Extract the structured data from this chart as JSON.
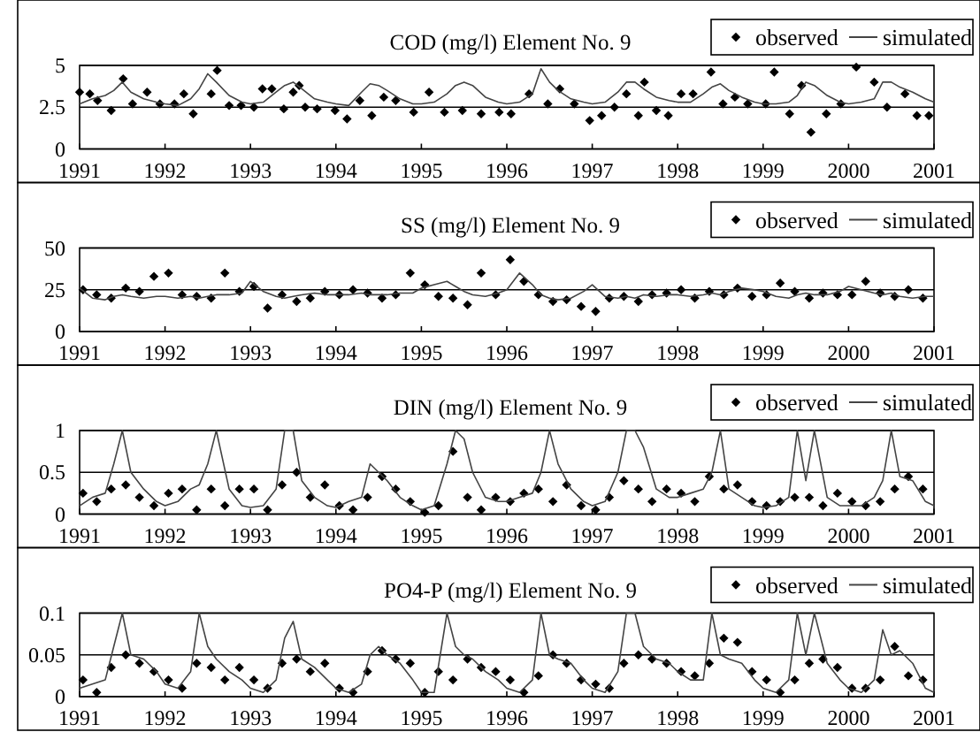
{
  "chart_data": [
    {
      "type": "line",
      "title": "COD (mg/l)  Element No. 9",
      "xlim": [
        1991,
        2001
      ],
      "xticks": [
        1991,
        1992,
        1993,
        1994,
        1995,
        1996,
        1997,
        1998,
        1999,
        2000,
        2001
      ],
      "ylim": [
        0,
        5
      ],
      "yticks": [
        0,
        2.5,
        5
      ],
      "grid": "y",
      "legend": "top right",
      "series": [
        {
          "name": "observed",
          "type": "scatter",
          "marker": "diamond",
          "color": "#000000",
          "x": [
            1991.0,
            1991.12,
            1991.21,
            1991.37,
            1991.51,
            1991.62,
            1991.79,
            1991.94,
            1992.11,
            1992.22,
            1992.33,
            1992.54,
            1992.61,
            1992.75,
            1992.89,
            1993.04,
            1993.14,
            1993.25,
            1993.39,
            1993.5,
            1993.57,
            1993.64,
            1993.78,
            1993.99,
            1994.13,
            1994.28,
            1994.42,
            1994.56,
            1994.7,
            1994.91,
            1995.09,
            1995.27,
            1995.48,
            1995.7,
            1995.91,
            1996.05,
            1996.26,
            1996.48,
            1996.62,
            1996.79,
            1996.97,
            1997.11,
            1997.26,
            1997.4,
            1997.54,
            1997.61,
            1997.75,
            1997.89,
            1998.04,
            1998.18,
            1998.39,
            1998.53,
            1998.67,
            1998.82,
            1999.03,
            1999.13,
            1999.31,
            1999.45,
            1999.56,
            1999.74,
            1999.91,
            2000.09,
            2000.3,
            2000.45,
            2000.66,
            2000.8,
            2000.94
          ],
          "values": [
            3.4,
            3.3,
            2.9,
            2.3,
            4.2,
            2.7,
            3.4,
            2.7,
            2.7,
            3.3,
            2.1,
            3.3,
            4.7,
            2.6,
            2.6,
            2.5,
            3.6,
            3.6,
            2.4,
            3.4,
            3.8,
            2.5,
            2.4,
            2.3,
            1.8,
            2.9,
            2.0,
            3.1,
            2.9,
            2.2,
            3.4,
            2.2,
            2.3,
            2.1,
            2.2,
            2.1,
            3.3,
            2.7,
            3.6,
            2.7,
            1.7,
            2.0,
            2.5,
            3.3,
            2.0,
            4.0,
            2.3,
            2.0,
            3.3,
            3.3,
            4.6,
            2.7,
            3.1,
            2.7,
            2.7,
            4.6,
            2.1,
            3.8,
            1.0,
            2.1,
            2.7,
            4.9,
            4.0,
            2.5,
            3.3,
            2.0,
            2.0
          ]
        },
        {
          "name": "simulated",
          "type": "line",
          "marker": "none",
          "color": "#444444",
          "x": [
            1991,
            1991.15,
            1991.3,
            1991.4,
            1991.5,
            1991.6,
            1991.75,
            1991.9,
            1992,
            1992.15,
            1992.3,
            1992.4,
            1992.5,
            1992.6,
            1992.75,
            1992.9,
            1993,
            1993.15,
            1993.3,
            1993.4,
            1993.5,
            1993.6,
            1993.75,
            1993.9,
            1994,
            1994.15,
            1994.3,
            1994.4,
            1994.5,
            1994.6,
            1994.75,
            1994.9,
            1995,
            1995.15,
            1995.3,
            1995.4,
            1995.5,
            1995.6,
            1995.75,
            1995.9,
            1996,
            1996.15,
            1996.3,
            1996.4,
            1996.5,
            1996.6,
            1996.75,
            1996.9,
            1997,
            1997.15,
            1997.3,
            1997.4,
            1997.5,
            1997.6,
            1997.75,
            1997.9,
            1998,
            1998.15,
            1998.3,
            1998.4,
            1998.5,
            1998.6,
            1998.75,
            1998.9,
            1999,
            1999.15,
            1999.3,
            1999.4,
            1999.5,
            1999.6,
            1999.75,
            1999.9,
            2000,
            2000.15,
            2000.3,
            2000.4,
            2000.5,
            2000.6,
            2000.75,
            2000.9,
            2001
          ],
          "values": [
            2.7,
            3.0,
            3.2,
            3.5,
            4.0,
            3.4,
            3.0,
            2.8,
            2.7,
            2.6,
            3.0,
            3.6,
            4.5,
            4.0,
            3.2,
            2.8,
            2.7,
            2.8,
            3.4,
            3.8,
            4.0,
            3.6,
            3.0,
            2.8,
            2.7,
            2.6,
            3.4,
            3.9,
            3.8,
            3.5,
            3.0,
            2.7,
            2.7,
            2.8,
            3.3,
            3.8,
            4.0,
            3.8,
            3.1,
            2.8,
            2.7,
            2.8,
            3.3,
            4.8,
            4.0,
            3.5,
            3.0,
            2.8,
            2.7,
            2.8,
            3.4,
            4.0,
            4.0,
            3.6,
            3.1,
            2.9,
            2.8,
            2.8,
            3.3,
            3.7,
            3.9,
            3.5,
            3.1,
            2.8,
            2.7,
            2.7,
            2.8,
            3.2,
            4.0,
            3.8,
            3.2,
            2.8,
            2.7,
            2.8,
            3.0,
            4.0,
            4.0,
            3.7,
            3.4,
            3.0,
            2.8
          ]
        }
      ]
    },
    {
      "type": "line",
      "title": "SS (mg/l)  Element No. 9",
      "xlim": [
        1991,
        2001
      ],
      "xticks": [
        1991,
        1992,
        1993,
        1994,
        1995,
        1996,
        1997,
        1998,
        1999,
        2000,
        2001
      ],
      "ylim": [
        0,
        50
      ],
      "yticks": [
        0,
        25,
        50
      ],
      "grid": "y",
      "legend": "top right",
      "series": [
        {
          "name": "observed",
          "type": "scatter",
          "marker": "diamond",
          "color": "#000000",
          "x": [
            1991.04,
            1991.2,
            1991.37,
            1991.54,
            1991.7,
            1991.87,
            1992.04,
            1992.2,
            1992.37,
            1992.54,
            1992.7,
            1992.87,
            1993.04,
            1993.2,
            1993.37,
            1993.54,
            1993.7,
            1993.87,
            1994.04,
            1994.2,
            1994.37,
            1994.54,
            1994.7,
            1994.87,
            1995.04,
            1995.2,
            1995.37,
            1995.54,
            1995.7,
            1995.87,
            1996.04,
            1996.2,
            1996.37,
            1996.54,
            1996.7,
            1996.87,
            1997.04,
            1997.2,
            1997.37,
            1997.54,
            1997.7,
            1997.87,
            1998.04,
            1998.2,
            1998.37,
            1998.54,
            1998.7,
            1998.87,
            1999.04,
            1999.2,
            1999.37,
            1999.54,
            1999.7,
            1999.87,
            2000.04,
            2000.2,
            2000.37,
            2000.54,
            2000.7,
            2000.87
          ],
          "values": [
            25,
            22,
            20,
            26,
            24,
            33,
            35,
            22,
            21,
            20,
            35,
            24,
            27,
            14,
            22,
            18,
            20,
            24,
            22,
            25,
            23,
            20,
            22,
            35,
            28,
            21,
            20,
            16,
            35,
            22,
            43,
            30,
            22,
            18,
            19,
            15,
            12,
            20,
            21,
            18,
            22,
            23,
            25,
            20,
            24,
            22,
            26,
            21,
            22,
            29,
            24,
            20,
            23,
            22,
            22,
            30,
            23,
            21,
            25,
            20
          ]
        },
        {
          "name": "simulated",
          "type": "line",
          "marker": "none",
          "color": "#444444",
          "x": [
            1991,
            1991.15,
            1991.3,
            1991.4,
            1991.5,
            1991.6,
            1991.75,
            1991.9,
            1992,
            1992.15,
            1992.3,
            1992.4,
            1992.5,
            1992.6,
            1992.75,
            1992.9,
            1993,
            1993.15,
            1993.3,
            1993.4,
            1993.5,
            1993.6,
            1993.75,
            1993.9,
            1994,
            1994.15,
            1994.3,
            1994.4,
            1994.5,
            1994.6,
            1994.75,
            1994.9,
            1995,
            1995.15,
            1995.3,
            1995.4,
            1995.5,
            1995.6,
            1995.75,
            1995.9,
            1996,
            1996.15,
            1996.3,
            1996.4,
            1996.5,
            1996.6,
            1996.75,
            1996.9,
            1997,
            1997.15,
            1997.3,
            1997.4,
            1997.5,
            1997.6,
            1997.75,
            1997.9,
            1998,
            1998.15,
            1998.3,
            1998.4,
            1998.5,
            1998.6,
            1998.75,
            1998.9,
            1999,
            1999.15,
            1999.3,
            1999.4,
            1999.5,
            1999.6,
            1999.75,
            1999.9,
            2000,
            2000.15,
            2000.3,
            2000.4,
            2000.5,
            2000.6,
            2000.75,
            2000.9,
            2001
          ],
          "values": [
            26,
            20,
            19,
            21,
            22,
            21,
            20,
            21,
            21,
            20,
            21,
            20,
            21,
            22,
            22,
            23,
            30,
            24,
            21,
            20,
            21,
            22,
            23,
            22,
            22,
            22,
            23,
            22,
            22,
            22,
            23,
            23,
            26,
            28,
            30,
            27,
            24,
            22,
            21,
            23,
            25,
            35,
            28,
            22,
            20,
            19,
            20,
            24,
            28,
            21,
            20,
            21,
            20,
            22,
            21,
            22,
            22,
            21,
            22,
            23,
            22,
            24,
            26,
            25,
            24,
            21,
            20,
            22,
            23,
            22,
            22,
            24,
            27,
            25,
            23,
            22,
            23,
            21,
            20,
            21,
            21
          ]
        }
      ]
    },
    {
      "type": "line",
      "title": "DIN (mg/l)  Element No. 9",
      "xlim": [
        1991,
        2001
      ],
      "xticks": [
        1991,
        1992,
        1993,
        1994,
        1995,
        1996,
        1997,
        1998,
        1999,
        2000,
        2001
      ],
      "ylim": [
        0,
        1
      ],
      "yticks": [
        0,
        0.5,
        1
      ],
      "grid": "y",
      "legend": "top right",
      "series": [
        {
          "name": "observed",
          "type": "scatter",
          "marker": "diamond",
          "color": "#000000",
          "x": [
            1991.04,
            1991.2,
            1991.37,
            1991.54,
            1991.7,
            1991.87,
            1992.04,
            1992.2,
            1992.37,
            1992.54,
            1992.7,
            1992.87,
            1993.04,
            1993.2,
            1993.37,
            1993.54,
            1993.7,
            1993.87,
            1994.04,
            1994.2,
            1994.37,
            1994.54,
            1994.7,
            1994.87,
            1995.04,
            1995.2,
            1995.37,
            1995.54,
            1995.7,
            1995.87,
            1996.04,
            1996.2,
            1996.37,
            1996.54,
            1996.7,
            1996.87,
            1997.04,
            1997.2,
            1997.37,
            1997.54,
            1997.7,
            1997.87,
            1998.04,
            1998.2,
            1998.37,
            1998.54,
            1998.7,
            1998.87,
            1999.04,
            1999.2,
            1999.37,
            1999.54,
            1999.7,
            1999.87,
            2000.04,
            2000.2,
            2000.37,
            2000.54,
            2000.7,
            2000.87
          ],
          "values": [
            0.25,
            0.15,
            0.3,
            0.35,
            0.2,
            0.1,
            0.25,
            0.3,
            0.05,
            0.3,
            0.1,
            0.3,
            0.3,
            0.05,
            0.35,
            0.5,
            0.2,
            0.35,
            0.1,
            0.05,
            0.2,
            0.45,
            0.3,
            0.15,
            0.02,
            0.1,
            0.75,
            0.2,
            0.05,
            0.2,
            0.15,
            0.25,
            0.3,
            0.15,
            0.35,
            0.1,
            0.05,
            0.2,
            0.4,
            0.3,
            0.15,
            0.3,
            0.25,
            0.15,
            0.45,
            0.3,
            0.35,
            0.15,
            0.1,
            0.15,
            0.2,
            0.2,
            0.1,
            0.25,
            0.15,
            0.1,
            0.15,
            0.3,
            0.45,
            0.3
          ]
        },
        {
          "name": "simulated",
          "type": "line",
          "marker": "none",
          "color": "#444444",
          "x": [
            1991,
            1991.15,
            1991.3,
            1991.4,
            1991.5,
            1991.6,
            1991.75,
            1991.9,
            1992,
            1992.15,
            1992.3,
            1992.4,
            1992.5,
            1992.6,
            1992.75,
            1992.9,
            1993,
            1993.15,
            1993.3,
            1993.4,
            1993.5,
            1993.6,
            1993.75,
            1993.9,
            1994,
            1994.15,
            1994.3,
            1994.4,
            1994.5,
            1994.6,
            1994.75,
            1994.9,
            1995,
            1995.15,
            1995.3,
            1995.4,
            1995.5,
            1995.6,
            1995.75,
            1995.9,
            1996,
            1996.15,
            1996.3,
            1996.4,
            1996.5,
            1996.6,
            1996.75,
            1996.9,
            1997,
            1997.15,
            1997.3,
            1997.4,
            1997.5,
            1997.6,
            1997.75,
            1997.9,
            1998,
            1998.15,
            1998.3,
            1998.4,
            1998.5,
            1998.6,
            1998.75,
            1998.9,
            1999,
            1999.15,
            1999.3,
            1999.4,
            1999.5,
            1999.6,
            1999.75,
            1999.9,
            2000,
            2000.15,
            2000.3,
            2000.4,
            2000.5,
            2000.6,
            2000.75,
            2000.9,
            2001
          ],
          "values": [
            0.1,
            0.2,
            0.25,
            0.6,
            1.0,
            0.5,
            0.3,
            0.15,
            0.1,
            0.15,
            0.3,
            0.35,
            0.6,
            1.0,
            0.3,
            0.1,
            0.08,
            0.1,
            0.3,
            1.0,
            1.0,
            0.4,
            0.2,
            0.1,
            0.08,
            0.15,
            0.2,
            0.6,
            0.5,
            0.4,
            0.2,
            0.1,
            0.05,
            0.1,
            0.6,
            1.0,
            0.9,
            0.5,
            0.2,
            0.15,
            0.15,
            0.2,
            0.25,
            0.5,
            1.0,
            0.6,
            0.3,
            0.15,
            0.1,
            0.15,
            0.5,
            1.0,
            1.0,
            0.8,
            0.3,
            0.2,
            0.2,
            0.25,
            0.3,
            0.5,
            1.0,
            0.3,
            0.2,
            0.1,
            0.08,
            0.1,
            0.2,
            1.0,
            0.4,
            1.0,
            0.2,
            0.1,
            0.1,
            0.1,
            0.2,
            0.4,
            1.0,
            0.45,
            0.4,
            0.15,
            0.1
          ]
        }
      ]
    },
    {
      "type": "line",
      "title": "PO4-P (mg/l)  Element No. 9",
      "xlim": [
        1991,
        2001
      ],
      "xticks": [
        1991,
        1992,
        1993,
        1994,
        1995,
        1996,
        1997,
        1998,
        1999,
        2000,
        2001
      ],
      "ylim": [
        0,
        0.1
      ],
      "yticks": [
        0,
        0.05,
        0.1
      ],
      "grid": "y",
      "legend": "top right",
      "series": [
        {
          "name": "observed",
          "type": "scatter",
          "marker": "diamond",
          "color": "#000000",
          "x": [
            1991.04,
            1991.2,
            1991.37,
            1991.54,
            1991.7,
            1991.87,
            1992.04,
            1992.2,
            1992.37,
            1992.54,
            1992.7,
            1992.87,
            1993.04,
            1993.2,
            1993.37,
            1993.54,
            1993.7,
            1993.87,
            1994.04,
            1994.2,
            1994.37,
            1994.54,
            1994.7,
            1994.87,
            1995.04,
            1995.2,
            1995.37,
            1995.54,
            1995.7,
            1995.87,
            1996.04,
            1996.2,
            1996.37,
            1996.54,
            1996.7,
            1996.87,
            1997.04,
            1997.2,
            1997.37,
            1997.54,
            1997.7,
            1997.87,
            1998.04,
            1998.2,
            1998.37,
            1998.54,
            1998.7,
            1998.87,
            1999.04,
            1999.2,
            1999.37,
            1999.54,
            1999.7,
            1999.87,
            2000.04,
            2000.2,
            2000.37,
            2000.54,
            2000.7,
            2000.87
          ],
          "values": [
            0.02,
            0.005,
            0.035,
            0.05,
            0.04,
            0.03,
            0.02,
            0.01,
            0.04,
            0.035,
            0.02,
            0.035,
            0.02,
            0.01,
            0.04,
            0.045,
            0.03,
            0.04,
            0.01,
            0.005,
            0.03,
            0.055,
            0.045,
            0.04,
            0.005,
            0.03,
            0.02,
            0.045,
            0.035,
            0.03,
            0.02,
            0.005,
            0.025,
            0.05,
            0.04,
            0.02,
            0.015,
            0.01,
            0.04,
            0.05,
            0.045,
            0.04,
            0.03,
            0.025,
            0.04,
            0.07,
            0.065,
            0.03,
            0.02,
            0.005,
            0.02,
            0.04,
            0.045,
            0.035,
            0.01,
            0.01,
            0.02,
            0.06,
            0.025,
            0.02
          ]
        },
        {
          "name": "simulated",
          "type": "line",
          "marker": "none",
          "color": "#444444",
          "x": [
            1991,
            1991.15,
            1991.3,
            1991.4,
            1991.5,
            1991.6,
            1991.75,
            1991.9,
            1992,
            1992.15,
            1992.3,
            1992.4,
            1992.5,
            1992.6,
            1992.75,
            1992.9,
            1993,
            1993.15,
            1993.3,
            1993.4,
            1993.5,
            1993.6,
            1993.75,
            1993.9,
            1994,
            1994.15,
            1994.3,
            1994.4,
            1994.5,
            1994.6,
            1994.75,
            1994.9,
            1995,
            1995.15,
            1995.3,
            1995.4,
            1995.5,
            1995.6,
            1995.75,
            1995.9,
            1996,
            1996.15,
            1996.3,
            1996.4,
            1996.5,
            1996.6,
            1996.75,
            1996.9,
            1997,
            1997.15,
            1997.3,
            1997.4,
            1997.5,
            1997.6,
            1997.75,
            1997.9,
            1998,
            1998.15,
            1998.3,
            1998.4,
            1998.5,
            1998.6,
            1998.75,
            1998.9,
            1999,
            1999.15,
            1999.3,
            1999.4,
            1999.5,
            1999.6,
            1999.75,
            1999.9,
            2000,
            2000.15,
            2000.3,
            2000.4,
            2000.5,
            2000.6,
            2000.75,
            2000.9,
            2001
          ],
          "values": [
            0.01,
            0.015,
            0.02,
            0.06,
            0.1,
            0.05,
            0.045,
            0.03,
            0.015,
            0.01,
            0.03,
            0.1,
            0.06,
            0.045,
            0.03,
            0.02,
            0.01,
            0.005,
            0.02,
            0.07,
            0.09,
            0.045,
            0.035,
            0.02,
            0.01,
            0.005,
            0.015,
            0.05,
            0.06,
            0.05,
            0.04,
            0.02,
            0.005,
            0.005,
            0.1,
            0.06,
            0.05,
            0.045,
            0.03,
            0.02,
            0.01,
            0.005,
            0.02,
            0.1,
            0.05,
            0.045,
            0.04,
            0.02,
            0.01,
            0.005,
            0.03,
            0.1,
            0.1,
            0.06,
            0.045,
            0.04,
            0.03,
            0.02,
            0.02,
            0.1,
            0.05,
            0.045,
            0.04,
            0.02,
            0.01,
            0.005,
            0.02,
            0.1,
            0.05,
            0.1,
            0.04,
            0.02,
            0.01,
            0.005,
            0.02,
            0.08,
            0.05,
            0.055,
            0.04,
            0.01,
            0.005
          ]
        }
      ]
    }
  ]
}
